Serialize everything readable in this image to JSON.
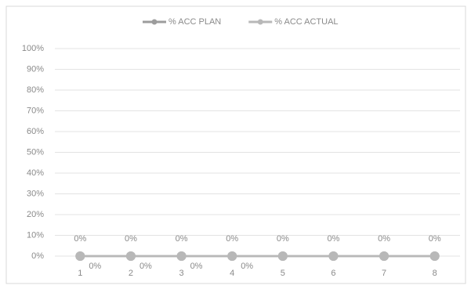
{
  "chart_data": {
    "type": "line",
    "categories": [
      "1",
      "2",
      "3",
      "4",
      "5",
      "6",
      "7",
      "8"
    ],
    "series": [
      {
        "name": "% ACC PLAN",
        "color": "#9c9c9c",
        "values": [
          0,
          0,
          0,
          0,
          0,
          0,
          0,
          0
        ],
        "value_labels": [
          "0%",
          "0%",
          "0%",
          "0%",
          "0%",
          "0%",
          "0%",
          "0%"
        ]
      },
      {
        "name": "% ACC ACTUAL",
        "color": "#b8b8b8",
        "values": [
          0,
          0,
          0,
          0,
          0,
          0,
          0,
          0
        ],
        "value_labels": [
          "0%",
          "0%",
          "0%",
          "0%",
          null,
          null,
          null,
          null
        ]
      }
    ],
    "ylim": [
      0,
      100
    ],
    "yticks": [
      {
        "value": 0,
        "label": "0%"
      },
      {
        "value": 10,
        "label": "10%"
      },
      {
        "value": 20,
        "label": "20%"
      },
      {
        "value": 30,
        "label": "30%"
      },
      {
        "value": 40,
        "label": "40%"
      },
      {
        "value": 50,
        "label": "50%"
      },
      {
        "value": 60,
        "label": "60%"
      },
      {
        "value": 70,
        "label": "70%"
      },
      {
        "value": 80,
        "label": "80%"
      },
      {
        "value": 90,
        "label": "90%"
      },
      {
        "value": 100,
        "label": "100%"
      }
    ],
    "grid": true,
    "legend": "top"
  }
}
